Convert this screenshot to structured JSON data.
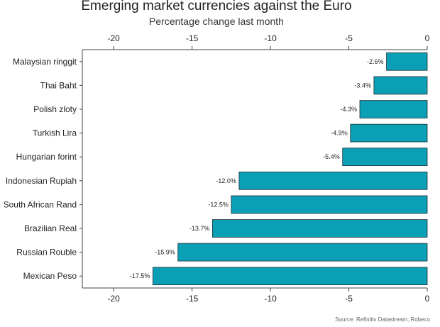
{
  "title": "Emerging market currencies against the Euro",
  "subtitle": "Percentage change last month",
  "source": "Source: Refinitiv Datastream, Robeco",
  "colors": {
    "bar": "#0b9fb5",
    "bar_stroke": "#1f2d33",
    "axis": "#444444",
    "text": "#222222"
  },
  "chart_data": {
    "type": "bar",
    "orientation": "horizontal",
    "title": "Emerging market currencies against the Euro",
    "subtitle": "Percentage change last month",
    "categories": [
      "Malaysian ringgit",
      "Thai Baht",
      "Polish zloty",
      "Turkish Lira",
      "Hungarian forint",
      "Indonesian Rupiah",
      "South African Rand",
      "Brazilian Real",
      "Russian Rouble",
      "Mexican Peso"
    ],
    "values": [
      -2.6,
      -3.4,
      -4.3,
      -4.9,
      -5.4,
      -12.0,
      -12.5,
      -13.7,
      -15.9,
      -17.5
    ],
    "data_labels": [
      "-2.6%",
      "-3.4%",
      "-4.3%",
      "-4.9%",
      "-5.4%",
      "-12.0%",
      "-12.5%",
      "-13.7%",
      "-15.9%",
      "-17.5%"
    ],
    "xlim": [
      -22,
      0
    ],
    "xticks": [
      -20,
      -15,
      -10,
      -5,
      0
    ],
    "xtick_labels": [
      "-20",
      "-15",
      "-10",
      "-5",
      "0"
    ],
    "x_axis_position": "top and bottom",
    "grid": false,
    "legend": "none"
  }
}
